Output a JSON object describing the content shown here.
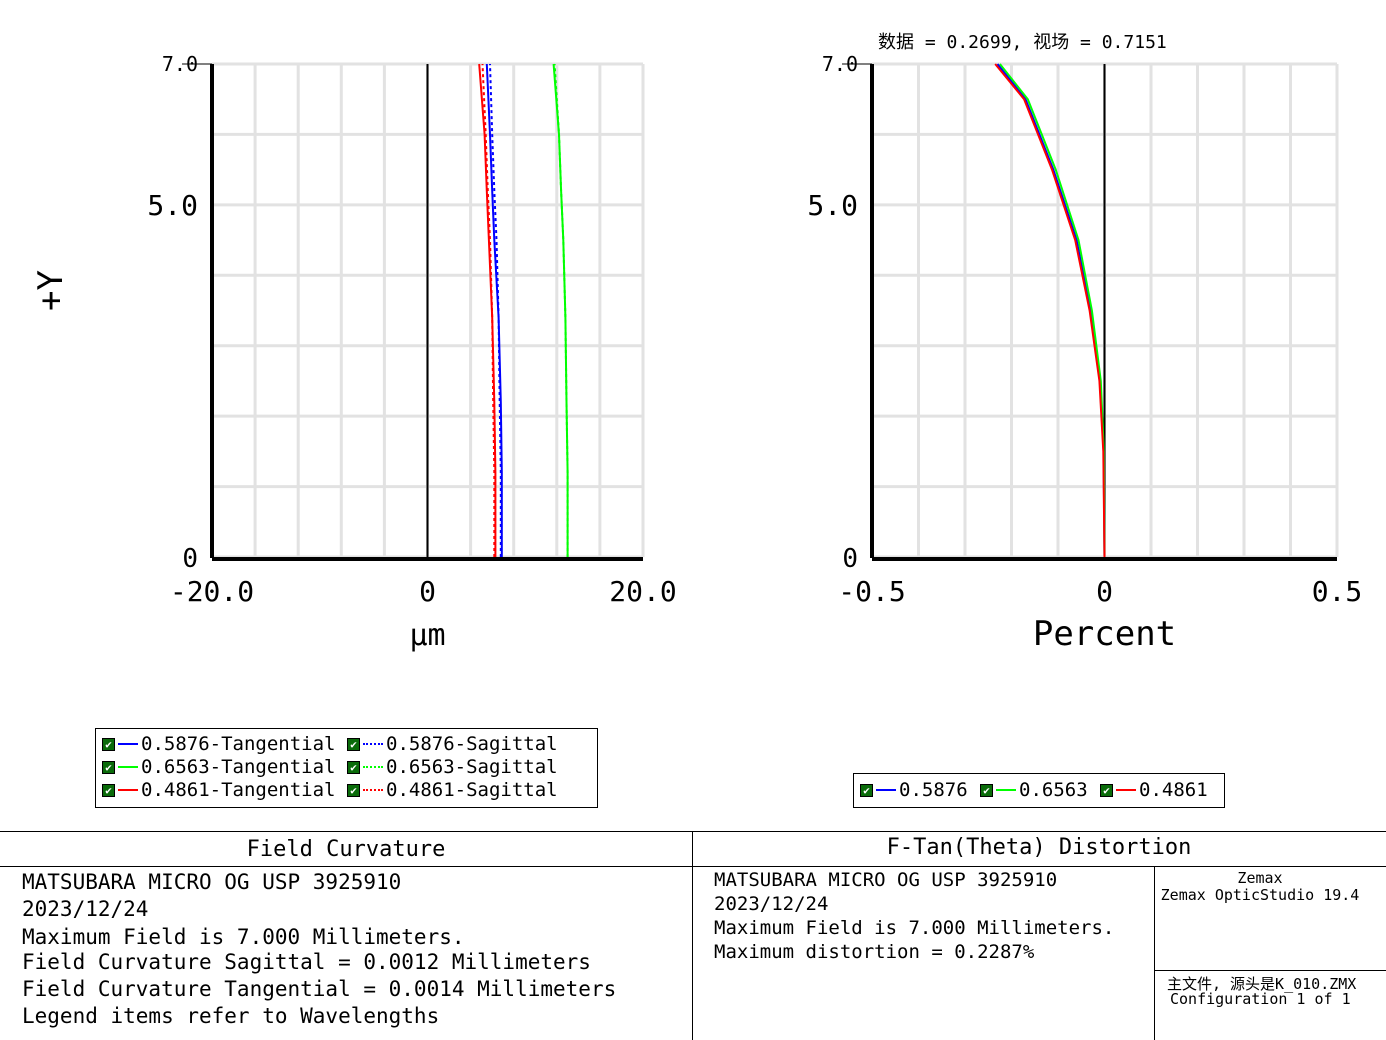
{
  "top_note": "数据 = 0.2699, 视场 = 0.7151",
  "chart_data": [
    {
      "type": "line",
      "title": "Field Curvature",
      "xlabel": "μm",
      "ylabel": "+Y",
      "xlim": [
        -20.0,
        20.0
      ],
      "ylim": [
        0,
        7.0
      ],
      "x_ticks": [
        "-20.0",
        "0",
        "20.0"
      ],
      "y_ticks": [
        "0",
        "5.0",
        "7.0"
      ],
      "grid": true,
      "series": [
        {
          "name": "0.5876-Tangential",
          "color": "#0000ff",
          "dash": "solid",
          "points": [
            [
              6.9,
              0
            ],
            [
              6.9,
              1.2
            ],
            [
              6.8,
              2.2
            ],
            [
              6.6,
              3.4
            ],
            [
              6.2,
              4.5
            ],
            [
              6.0,
              5.2
            ],
            [
              5.8,
              6.0
            ],
            [
              5.5,
              7.0
            ]
          ]
        },
        {
          "name": "0.5876-Sagittal",
          "color": "#0000ff",
          "dash": "dotted",
          "points": [
            [
              6.8,
              0
            ],
            [
              6.8,
              1.2
            ],
            [
              6.7,
              2.2
            ],
            [
              6.6,
              3.4
            ],
            [
              6.4,
              4.5
            ],
            [
              6.2,
              5.2
            ],
            [
              6.0,
              6.0
            ],
            [
              5.8,
              7.0
            ]
          ]
        },
        {
          "name": "0.6563-Tangential",
          "color": "#00ff00",
          "dash": "solid",
          "points": [
            [
              13.0,
              0
            ],
            [
              13.0,
              1.2
            ],
            [
              12.9,
              2.2
            ],
            [
              12.8,
              3.4
            ],
            [
              12.6,
              4.5
            ],
            [
              12.4,
              5.2
            ],
            [
              12.2,
              6.0
            ],
            [
              11.7,
              7.0
            ]
          ]
        },
        {
          "name": "0.6563-Sagittal",
          "color": "#00ff00",
          "dash": "dotted",
          "points": [
            [
              13.0,
              0
            ],
            [
              13.0,
              1.2
            ],
            [
              12.9,
              2.2
            ],
            [
              12.8,
              3.4
            ],
            [
              12.6,
              4.5
            ],
            [
              12.4,
              5.2
            ],
            [
              12.2,
              6.0
            ],
            [
              11.8,
              7.0
            ]
          ]
        },
        {
          "name": "0.4861-Tangential",
          "color": "#ff0000",
          "dash": "solid",
          "points": [
            [
              6.3,
              0
            ],
            [
              6.3,
              1.2
            ],
            [
              6.2,
              2.2
            ],
            [
              6.0,
              3.4
            ],
            [
              5.7,
              4.5
            ],
            [
              5.5,
              5.2
            ],
            [
              5.3,
              6.0
            ],
            [
              4.8,
              7.0
            ]
          ]
        },
        {
          "name": "0.4861-Sagittal",
          "color": "#ff0000",
          "dash": "dotted",
          "points": [
            [
              6.2,
              0
            ],
            [
              6.2,
              1.2
            ],
            [
              6.1,
              2.2
            ],
            [
              6.0,
              3.4
            ],
            [
              5.8,
              4.5
            ],
            [
              5.6,
              5.2
            ],
            [
              5.4,
              6.0
            ],
            [
              5.1,
              7.0
            ]
          ]
        }
      ]
    },
    {
      "type": "line",
      "title": "F-Tan(Theta) Distortion",
      "xlabel": "Percent",
      "ylabel": "",
      "xlim": [
        -0.5,
        0.5
      ],
      "ylim": [
        0,
        7.0
      ],
      "x_ticks": [
        "-0.5",
        "0",
        "0.5"
      ],
      "y_ticks": [
        "0",
        "5.0",
        "7.0"
      ],
      "grid": true,
      "series": [
        {
          "name": "0.5876",
          "color": "#0000ff",
          "dash": "solid",
          "points": [
            [
              0,
              0
            ],
            [
              -0.002,
              1.5
            ],
            [
              -0.01,
              2.5
            ],
            [
              -0.03,
              3.5
            ],
            [
              -0.06,
              4.5
            ],
            [
              -0.11,
              5.5
            ],
            [
              -0.17,
              6.5
            ],
            [
              -0.23,
              7.0
            ]
          ]
        },
        {
          "name": "0.6563",
          "color": "#00ff00",
          "dash": "solid",
          "points": [
            [
              0,
              0
            ],
            [
              -0.0015,
              1.5
            ],
            [
              -0.008,
              2.5
            ],
            [
              -0.027,
              3.5
            ],
            [
              -0.056,
              4.5
            ],
            [
              -0.105,
              5.5
            ],
            [
              -0.165,
              6.5
            ],
            [
              -0.225,
              7.0
            ]
          ]
        },
        {
          "name": "0.4861",
          "color": "#ff0000",
          "dash": "solid",
          "points": [
            [
              0,
              0
            ],
            [
              -0.0025,
              1.5
            ],
            [
              -0.011,
              2.5
            ],
            [
              -0.032,
              3.5
            ],
            [
              -0.063,
              4.5
            ],
            [
              -0.113,
              5.5
            ],
            [
              -0.173,
              6.5
            ],
            [
              -0.235,
              7.0
            ]
          ]
        }
      ]
    }
  ],
  "legend_left": [
    {
      "label": "0.5876-Tangential",
      "color": "#0000ff",
      "dash": "solid"
    },
    {
      "label": "0.5876-Sagittal",
      "color": "#0000ff",
      "dash": "dotted"
    },
    {
      "label": "0.6563-Tangential",
      "color": "#00ff00",
      "dash": "solid"
    },
    {
      "label": "0.6563-Sagittal",
      "color": "#00ff00",
      "dash": "dotted"
    },
    {
      "label": "0.4861-Tangential",
      "color": "#ff0000",
      "dash": "solid"
    },
    {
      "label": "0.4861-Sagittal",
      "color": "#ff0000",
      "dash": "dotted"
    }
  ],
  "legend_right": [
    {
      "label": "0.5876",
      "color": "#0000ff",
      "dash": "solid"
    },
    {
      "label": "0.6563",
      "color": "#00ff00",
      "dash": "solid"
    },
    {
      "label": "0.4861",
      "color": "#ff0000",
      "dash": "solid"
    }
  ],
  "info_left": {
    "title": "Field Curvature",
    "lines": [
      "MATSUBARA MICRO OG USP 3925910",
      "2023/12/24",
      "Maximum Field is 7.000 Millimeters.",
      "Field Curvature Sagittal = 0.0012 Millimeters",
      "Field Curvature Tangential = 0.0014 Millimeters",
      "Legend items refer to Wavelengths"
    ]
  },
  "info_right": {
    "title": "F-Tan(Theta) Distortion",
    "lines": [
      "MATSUBARA MICRO OG USP 3925910",
      "2023/12/24",
      "Maximum Field is 7.000 Millimeters.",
      "Maximum distortion = 0.2287%"
    ]
  },
  "info_vendor": {
    "company": "Zemax",
    "product": "Zemax OpticStudio 19.4",
    "file": "主文件, 源头是K_010.ZMX",
    "config": "Configuration 1 of 1"
  }
}
